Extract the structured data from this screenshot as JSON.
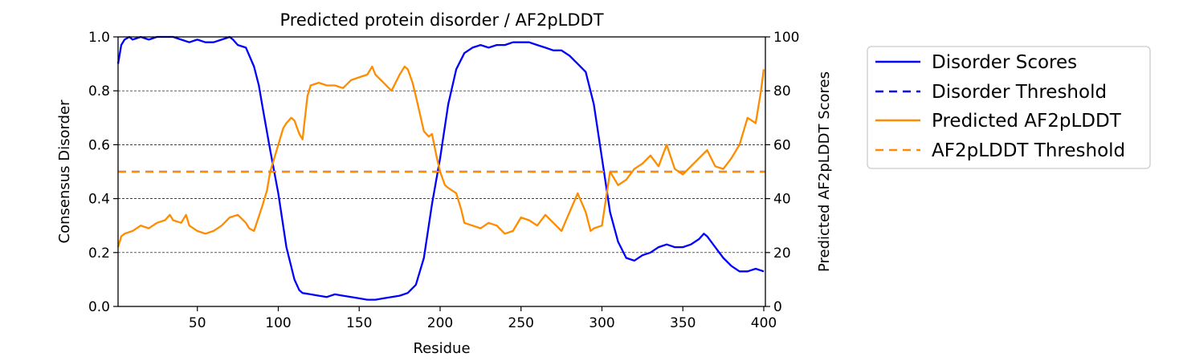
{
  "chart_data": {
    "type": "line",
    "title": "Predicted protein disorder / AF2pLDDT",
    "xlabel": "Residue",
    "ylabel_left": "Consensus Disorder",
    "ylabel_right": "Predicted AF2pLDDT Scores",
    "xlim": [
      1,
      401
    ],
    "ylim_left": [
      0,
      1
    ],
    "ylim_right": [
      0,
      100
    ],
    "xticks": [
      50,
      100,
      150,
      200,
      250,
      300,
      350,
      400
    ],
    "yticks_left": [
      "0.0",
      "0.2",
      "0.4",
      "0.6",
      "0.8",
      "1.0"
    ],
    "yticks_right": [
      "0",
      "20",
      "40",
      "60",
      "80",
      "100"
    ],
    "grid": "horizontal dashed at left-axis ticks",
    "legend_position": "outside-right",
    "colors": {
      "disorder": "#0000ff",
      "plddt": "#ff8c00"
    },
    "series": [
      {
        "name": "Disorder Scores",
        "axis": "left",
        "style": "solid",
        "color": "#0000ff",
        "x": [
          1,
          3,
          5,
          8,
          10,
          15,
          20,
          25,
          30,
          35,
          40,
          45,
          50,
          55,
          60,
          65,
          70,
          72,
          75,
          80,
          85,
          88,
          90,
          95,
          100,
          105,
          110,
          113,
          115,
          120,
          125,
          130,
          135,
          140,
          145,
          150,
          155,
          160,
          165,
          170,
          175,
          180,
          185,
          190,
          195,
          200,
          205,
          210,
          215,
          220,
          225,
          230,
          235,
          240,
          245,
          250,
          255,
          260,
          265,
          270,
          275,
          280,
          285,
          290,
          295,
          300,
          305,
          310,
          315,
          320,
          325,
          330,
          335,
          340,
          345,
          350,
          355,
          360,
          363,
          365,
          370,
          375,
          380,
          385,
          390,
          395,
          400
        ],
        "y": [
          0.9,
          0.97,
          0.99,
          1.0,
          0.99,
          1.0,
          0.99,
          1.0,
          1.0,
          1.0,
          0.99,
          0.98,
          0.99,
          0.98,
          0.98,
          0.99,
          1.0,
          0.99,
          0.97,
          0.96,
          0.89,
          0.82,
          0.75,
          0.58,
          0.42,
          0.22,
          0.1,
          0.06,
          0.05,
          0.045,
          0.04,
          0.035,
          0.045,
          0.04,
          0.035,
          0.03,
          0.025,
          0.025,
          0.03,
          0.035,
          0.04,
          0.05,
          0.08,
          0.18,
          0.38,
          0.55,
          0.75,
          0.88,
          0.94,
          0.96,
          0.97,
          0.96,
          0.97,
          0.97,
          0.98,
          0.98,
          0.98,
          0.97,
          0.96,
          0.95,
          0.95,
          0.93,
          0.9,
          0.87,
          0.75,
          0.55,
          0.35,
          0.24,
          0.18,
          0.17,
          0.19,
          0.2,
          0.22,
          0.23,
          0.22,
          0.22,
          0.23,
          0.25,
          0.27,
          0.26,
          0.22,
          0.18,
          0.15,
          0.13,
          0.13,
          0.14,
          0.13
        ]
      },
      {
        "name": "Disorder Threshold",
        "axis": "left",
        "style": "dashed",
        "color": "#0000ff",
        "x": [
          1,
          401
        ],
        "y": [
          0.5,
          0.5
        ]
      },
      {
        "name": "Predicted AF2pLDDT",
        "axis": "right",
        "style": "solid",
        "color": "#ff8c00",
        "x": [
          1,
          3,
          5,
          10,
          15,
          20,
          25,
          30,
          33,
          35,
          40,
          43,
          45,
          50,
          55,
          60,
          65,
          70,
          75,
          80,
          82,
          85,
          90,
          93,
          95,
          98,
          100,
          103,
          105,
          108,
          110,
          113,
          115,
          118,
          120,
          125,
          130,
          135,
          140,
          145,
          150,
          155,
          158,
          160,
          165,
          170,
          175,
          178,
          180,
          183,
          185,
          190,
          193,
          195,
          198,
          200,
          203,
          205,
          210,
          213,
          215,
          220,
          225,
          230,
          235,
          240,
          245,
          250,
          255,
          260,
          265,
          270,
          275,
          280,
          285,
          290,
          293,
          295,
          300,
          303,
          305,
          310,
          315,
          320,
          325,
          330,
          335,
          340,
          345,
          350,
          355,
          360,
          365,
          370,
          375,
          380,
          385,
          390,
          395,
          398,
          400
        ],
        "y": [
          22,
          26,
          27,
          28,
          30,
          29,
          31,
          32,
          34,
          32,
          31,
          34,
          30,
          28,
          27,
          28,
          30,
          33,
          34,
          31,
          29,
          28,
          37,
          43,
          50,
          56,
          60,
          66,
          68,
          70,
          69,
          64,
          62,
          78,
          82,
          83,
          82,
          82,
          81,
          84,
          85,
          86,
          89,
          86,
          83,
          80,
          86,
          89,
          88,
          83,
          78,
          65,
          63,
          64,
          55,
          50,
          45,
          44,
          42,
          36,
          31,
          30,
          29,
          31,
          30,
          27,
          28,
          33,
          32,
          30,
          34,
          31,
          28,
          35,
          42,
          35,
          28,
          29,
          30,
          42,
          50,
          45,
          47,
          51,
          53,
          56,
          52,
          60,
          51,
          49,
          52,
          55,
          58,
          52,
          51,
          55,
          60,
          70,
          68,
          79,
          88
        ]
      },
      {
        "name": "AF2pLDDT Threshold",
        "axis": "right",
        "style": "dashed",
        "color": "#ff8c00",
        "x": [
          1,
          401
        ],
        "y": [
          50,
          50
        ]
      }
    ]
  }
}
